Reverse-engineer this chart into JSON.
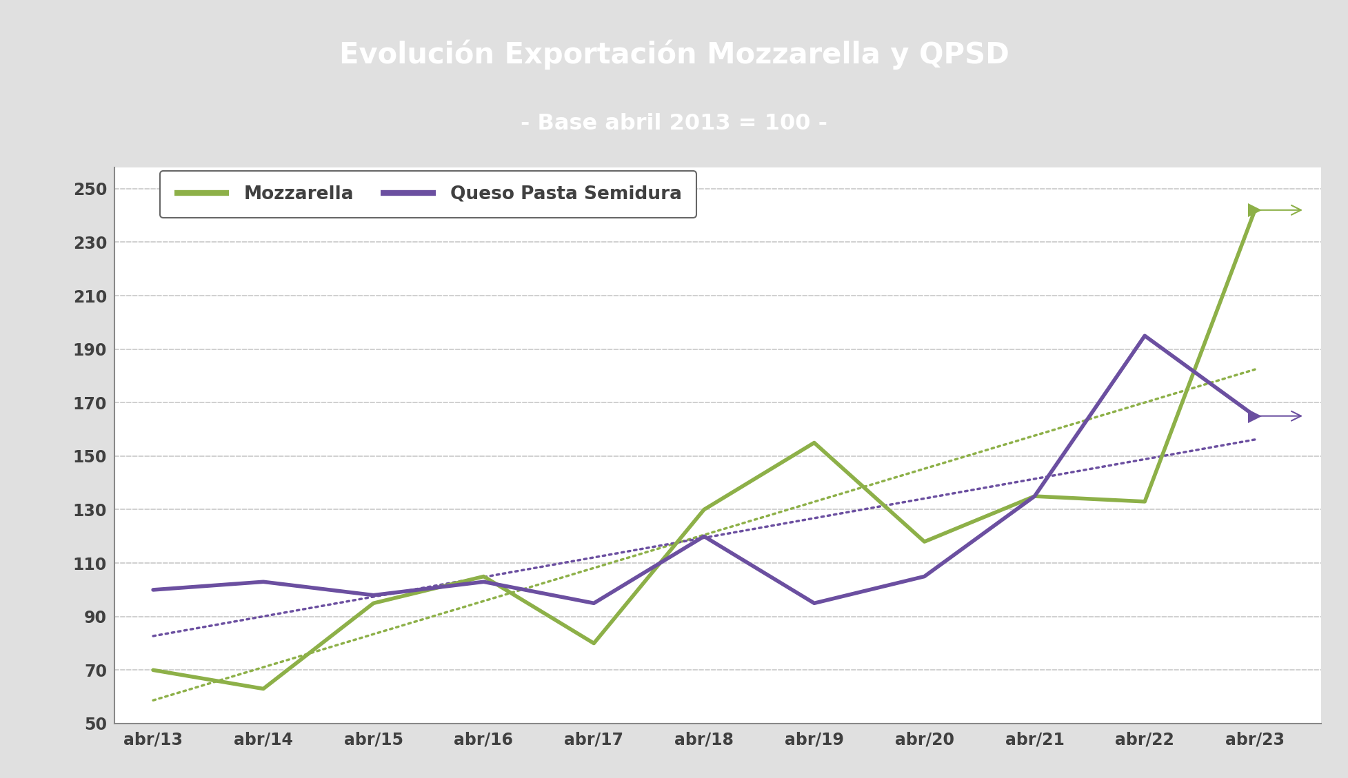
{
  "title_line1": "Evolución Exportación Mozzarella y QPSD",
  "title_line2": "- Base abril 2013 = 100 -",
  "title_bg_color": "#1c2e4a",
  "title_text_color": "#ffffff",
  "x_labels": [
    "abr/13",
    "abr/14",
    "abr/15",
    "abr/16",
    "abr/17",
    "abr/18",
    "abr/19",
    "abr/20",
    "abr/21",
    "abr/22",
    "abr/23"
  ],
  "mozzarella": [
    70,
    63,
    95,
    105,
    80,
    130,
    155,
    118,
    135,
    133,
    242
  ],
  "qpsd": [
    100,
    103,
    98,
    103,
    95,
    120,
    95,
    105,
    135,
    195,
    165
  ],
  "mozz_color": "#8db048",
  "qpsd_color": "#6b4fa0",
  "bg_color": "#e0e0e0",
  "plot_bg_color": "#ffffff",
  "ylim": [
    50,
    258
  ],
  "yticks": [
    50,
    70,
    90,
    110,
    130,
    150,
    170,
    190,
    210,
    230,
    250
  ],
  "legend_mozz": "Mozzarella",
  "legend_qpsd": "Queso Pasta Semidura",
  "grid_color": "#c8c8c8",
  "line_width": 4.0,
  "trend_dot_size": 8
}
